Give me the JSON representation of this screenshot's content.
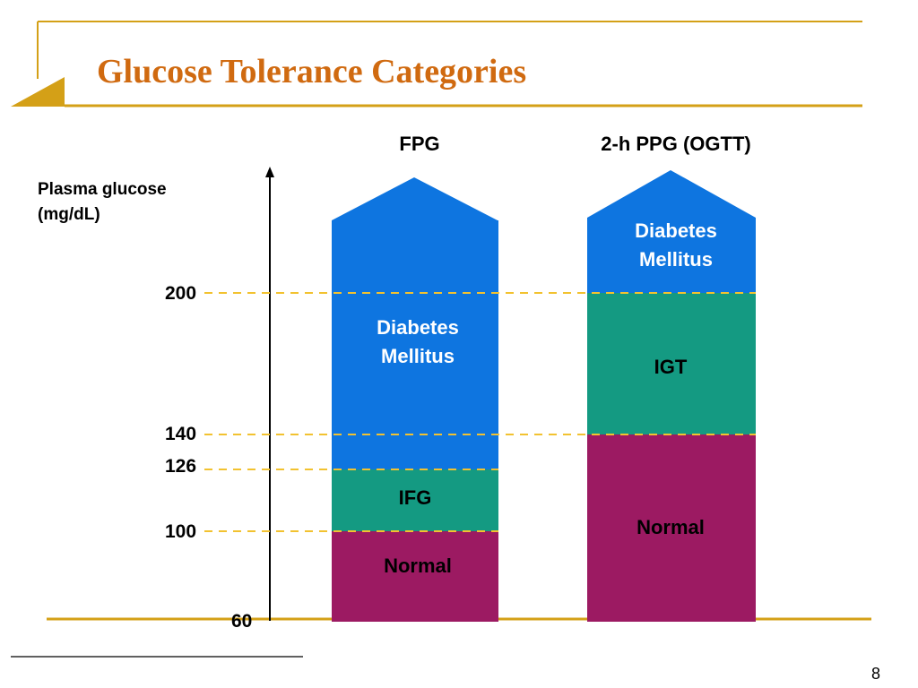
{
  "slide": {
    "title": "Glucose Tolerance Categories",
    "page_number": "8"
  },
  "axis": {
    "label_line1": "Plasma glucose",
    "label_line2": "(mg/dL)",
    "ticks": [
      "200",
      "140",
      "126",
      "100",
      "60"
    ]
  },
  "columns": [
    {
      "header": "FPG",
      "segments": [
        {
          "line1": "Diabetes",
          "line2": "Mellitus"
        },
        {
          "line1": "IFG",
          "line2": ""
        },
        {
          "line1": "Normal",
          "line2": ""
        }
      ]
    },
    {
      "header": "2-h PPG (OGTT)",
      "segments": [
        {
          "line1": "Diabetes",
          "line2": "Mellitus"
        },
        {
          "line1": "IGT",
          "line2": ""
        },
        {
          "line1": "Normal",
          "line2": ""
        }
      ]
    }
  ],
  "colors": {
    "accent": "#D06A10",
    "gold": "#D4A017",
    "diabetes": "#0E75E0",
    "intermediate": "#149A82",
    "normal": "#9C1A62",
    "threshold_line": "#F2C230"
  }
}
